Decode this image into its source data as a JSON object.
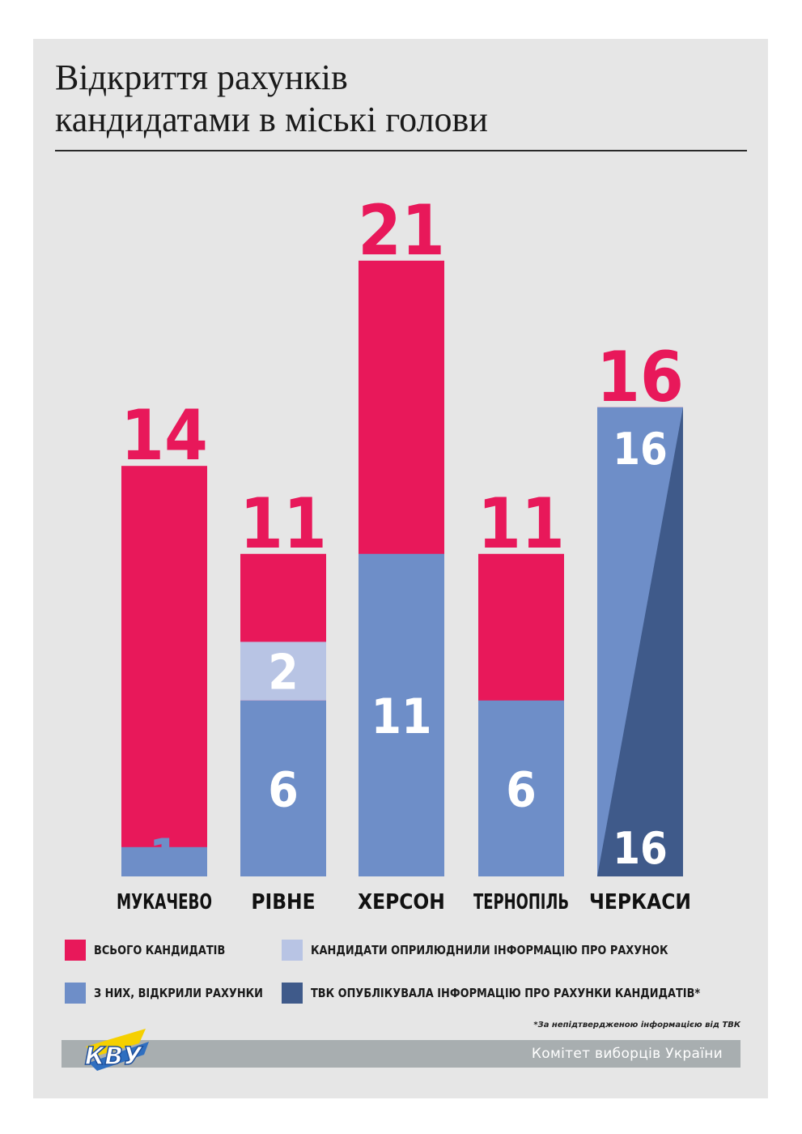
{
  "title_lines": [
    "Відкриття рахунків",
    "кандидатами в міські голови"
  ],
  "chart_data": {
    "type": "bar",
    "title": "Відкриття рахунків кандидатами в міські голови",
    "categories": [
      "МУКАЧЕВО",
      "РІВНЕ",
      "ХЕРСОН",
      "ТЕРНОПІЛЬ",
      "ЧЕРКАСИ"
    ],
    "series": [
      {
        "name": "ВСЬОГО КАНДИДАТІВ",
        "values": [
          14,
          11,
          21,
          11,
          16
        ]
      },
      {
        "name": "З НИХ, ВІДКРИЛИ РАХУНКИ",
        "values": [
          1,
          6,
          11,
          6,
          16
        ]
      },
      {
        "name": "КАНДИДАТИ ОПРИЛЮДНИЛИ ІНФОРМАЦІЮ ПРО РАХУНОК",
        "values": [
          null,
          2,
          null,
          null,
          null
        ]
      },
      {
        "name": "ТВК ОПУБЛІКУВАЛА ІНФОРМАЦІЮ ПРО РАХУНКИ КАНДИДАТІВ*",
        "values": [
          null,
          null,
          null,
          null,
          16
        ]
      }
    ],
    "ylim": [
      0,
      21
    ],
    "grid": false,
    "legend_position": "bottom"
  },
  "legend": [
    {
      "label": "ВСЬОГО КАНДИДАТІВ",
      "color": "#e8185a"
    },
    {
      "label": "КАНДИДАТИ ОПРИЛЮДНИЛИ ІНФОРМАЦІЮ ПРО РАХУНОК",
      "color": "#b8c4e4"
    },
    {
      "label": "З НИХ, ВІДКРИЛИ РАХУНКИ",
      "color": "#6e8ec8"
    },
    {
      "label": "ТВК ОПУБЛІКУВАЛА ІНФОРМАЦІЮ ПРО РАХУНКИ КАНДИДАТІВ*",
      "color": "#3f5a8a"
    }
  ],
  "colors": {
    "total": "#e8185a",
    "opened": "#6e8ec8",
    "published_by_candidates": "#b8c4e4",
    "published_by_commission": "#3f5a8a",
    "background": "#e6e6e6",
    "footer": "#a8aeb0"
  },
  "footnote": "*За непідтвердженою інформацією від ТВК",
  "footer_text": "Комітет виборців України",
  "logo_text": "КВУ",
  "logo_icon": "kvu-logo-icon"
}
